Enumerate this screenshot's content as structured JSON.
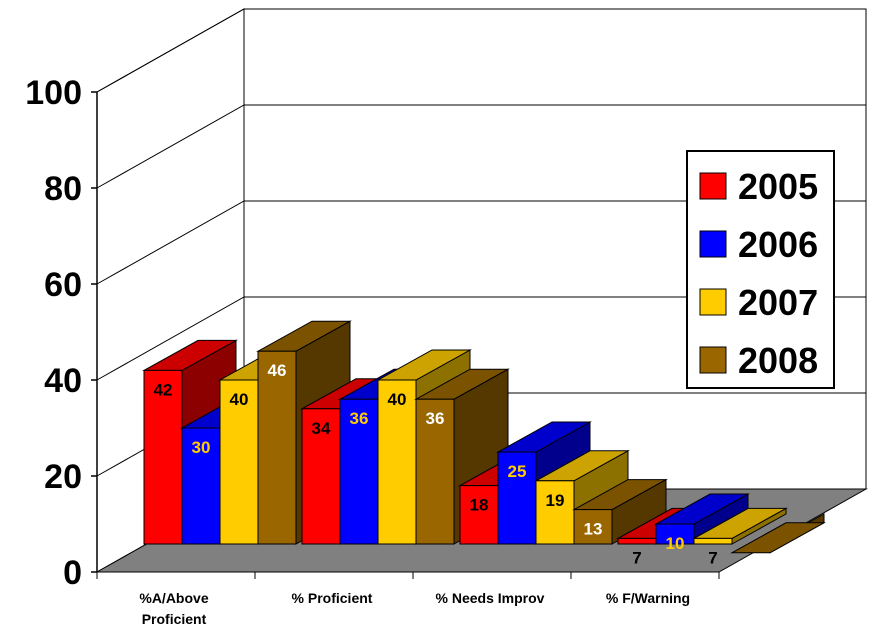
{
  "chart_data": {
    "type": "bar",
    "style": "3d-clustered",
    "categories": [
      "%A/Above Proficient",
      "% Proficient",
      "% Needs Improv",
      "% F/Warning"
    ],
    "series": [
      {
        "name": "2005",
        "color": "#ff0000",
        "values": [
          42,
          34,
          18,
          7
        ]
      },
      {
        "name": "2006",
        "color": "#0000ff",
        "values": [
          30,
          36,
          25,
          10
        ]
      },
      {
        "name": "2007",
        "color": "#ffcc00",
        "values": [
          40,
          40,
          19,
          7
        ]
      },
      {
        "name": "2008",
        "color": "#996600",
        "values": [
          46,
          36,
          13,
          4
        ]
      }
    ],
    "label_colors": [
      "#000000",
      "#ffcc00",
      "#000000",
      "#ffffff"
    ],
    "yticks": [
      "0",
      "20",
      "40",
      "60",
      "80",
      "100"
    ],
    "ylim": [
      0,
      100
    ],
    "grid": true,
    "legend_position": "right"
  }
}
